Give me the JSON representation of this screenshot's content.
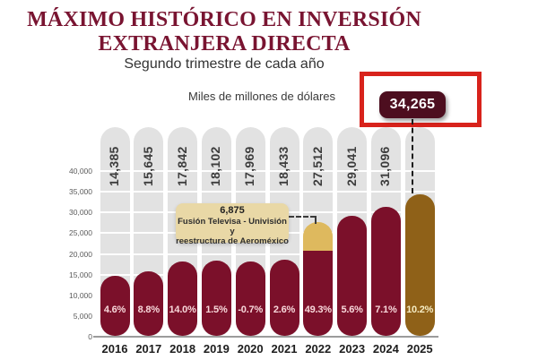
{
  "header": {
    "title_line1": "MÁXIMO HISTÓRICO EN INVERSIÓN",
    "title_line2": "EXTRANJERA DIRECTA",
    "subtitle": "Segundo trimestre de cada año",
    "units_label": "Miles de millones de dólares"
  },
  "highlight": {
    "value": "34,265",
    "box_border_color": "#d8231c",
    "badge_bg": "#4d0e1f"
  },
  "annotation": {
    "value": "6,875",
    "line1": "Fusión Televisa - Univisión y",
    "line2": "reestructura de Aeroméxico",
    "bg": "#e9d8a6"
  },
  "chart_data": {
    "type": "bar",
    "title": "MÁXIMO HISTÓRICO EN INVERSIÓN EXTRANJERA DIRECTA",
    "subtitle": "Segundo trimestre de cada año",
    "ylabel": "Miles de millones de dólares",
    "categories": [
      "2016",
      "2017",
      "2018",
      "2019",
      "2020",
      "2021",
      "2022",
      "2023",
      "2024",
      "2025"
    ],
    "series": [
      {
        "name": "Inversión extranjera directa",
        "values": [
          14385,
          15645,
          17842,
          18102,
          17969,
          18433,
          27512,
          29041,
          31096,
          34265
        ]
      }
    ],
    "value_labels": [
      "14,385",
      "15,645",
      "17,842",
      "18,102",
      "17,969",
      "18,433",
      "27,512",
      "29,041",
      "31,096",
      ""
    ],
    "pct_labels": [
      "4.6%",
      "8.8%",
      "14.0%",
      "1.5%",
      "-0.7%",
      "2.6%",
      "49.3%",
      "5.6%",
      "7.1%",
      "10.2%"
    ],
    "ylim": [
      0,
      40000
    ],
    "ytick_step": 5000,
    "ytick_labels": [
      "0",
      "5,000",
      "10,000",
      "15,000",
      "20,000",
      "25,000",
      "30,000",
      "35,000",
      "40,000"
    ],
    "grid": true,
    "legend_position": "none",
    "segment": {
      "index": 6,
      "value": 6875,
      "color": "#deb95e"
    },
    "highlight_bar": {
      "index": 9,
      "color": "#8f6118",
      "pct_color": "#f6ecc3"
    },
    "colors": {
      "bar": "#7b102a",
      "track": "#e2e2e2",
      "pct_text": "#f8d7da",
      "value_text": "#3d3d3d",
      "axis_line": "#9b9b9b"
    }
  }
}
